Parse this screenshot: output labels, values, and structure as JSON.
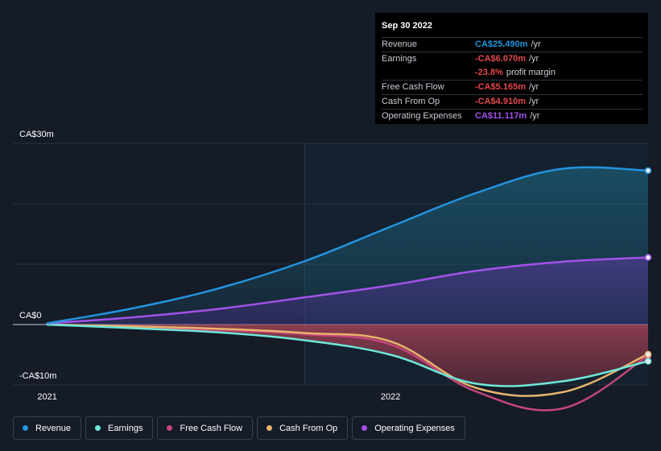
{
  "chart_data": {
    "type": "line",
    "title": "",
    "xlabel": "",
    "ylabel": "",
    "y_unit": "CA$ m",
    "ylim": [
      -10,
      30
    ],
    "y_ticks": [
      {
        "value": 30,
        "label": "CA$30m"
      },
      {
        "value": 0,
        "label": "CA$0"
      },
      {
        "value": -10,
        "label": "-CA$10m"
      }
    ],
    "x_ticks": [
      {
        "value": 2021.0,
        "label": "2021"
      },
      {
        "value": 2022.0,
        "label": "2022"
      }
    ],
    "xlim": [
      2020.9,
      2022.75
    ],
    "past_data_start": 2021.75,
    "grid": true,
    "legend_position": "bottom-left",
    "x": [
      2021.0,
      2021.25,
      2021.5,
      2021.75,
      2022.0,
      2022.25,
      2022.5,
      2022.75
    ],
    "series": [
      {
        "name": "Revenue",
        "color": "#2394df",
        "fill": true,
        "values": [
          0.2,
          2.7,
          6.0,
          10.5,
          16.2,
          21.8,
          25.8,
          25.49
        ]
      },
      {
        "name": "Earnings",
        "color": "#6ee7d8",
        "fill": true,
        "values": [
          0.0,
          -0.6,
          -1.3,
          -2.6,
          -5.0,
          -9.8,
          -9.4,
          -6.07
        ]
      },
      {
        "name": "Free Cash Flow",
        "color": "#c6457c",
        "fill": false,
        "values": [
          0.0,
          -0.4,
          -0.9,
          -1.6,
          -3.3,
          -11.1,
          -13.9,
          -5.165
        ]
      },
      {
        "name": "Cash From Op",
        "color": "#e8b26b",
        "fill": false,
        "values": [
          0.0,
          -0.3,
          -0.7,
          -1.4,
          -2.8,
          -10.5,
          -11.2,
          -4.91
        ]
      },
      {
        "name": "Operating Expenses",
        "color": "#a352e9",
        "fill": true,
        "values": [
          0.2,
          1.2,
          2.6,
          4.5,
          6.5,
          8.9,
          10.4,
          11.117
        ]
      }
    ]
  },
  "tooltip": {
    "date": "Sep 30 2022",
    "rows": [
      {
        "label": "Revenue",
        "value": "CA$25.490m",
        "unit": "/yr",
        "color": "#2394df"
      },
      {
        "label": "Earnings",
        "value": "-CA$6.070m",
        "unit": "/yr",
        "color": "#e5484d"
      },
      {
        "label": "",
        "value": "-23.8%",
        "unit": "profit margin",
        "color": "#e5484d"
      },
      {
        "label": "Free Cash Flow",
        "value": "-CA$5.165m",
        "unit": "/yr",
        "color": "#e5484d"
      },
      {
        "label": "Cash From Op",
        "value": "-CA$4.910m",
        "unit": "/yr",
        "color": "#e5484d"
      },
      {
        "label": "Operating Expenses",
        "value": "CA$11.117m",
        "unit": "/yr",
        "color": "#a352e9"
      }
    ]
  },
  "legend": [
    {
      "label": "Revenue",
      "color": "#2394df"
    },
    {
      "label": "Earnings",
      "color": "#6ee7d8"
    },
    {
      "label": "Free Cash Flow",
      "color": "#c6457c"
    },
    {
      "label": "Cash From Op",
      "color": "#e8b26b"
    },
    {
      "label": "Operating Expenses",
      "color": "#a352e9"
    }
  ]
}
